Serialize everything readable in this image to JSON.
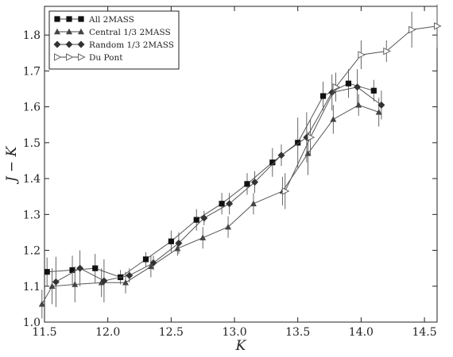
{
  "chart_data": {
    "type": "line",
    "title": "",
    "xlabel": "K",
    "ylabel": "J − K",
    "xlim": [
      11.5,
      14.6
    ],
    "ylim": [
      1.0,
      1.88
    ],
    "xticks": [
      "11.5",
      "12.0",
      "12.5",
      "13.0",
      "13.5",
      "14.0",
      "14.5"
    ],
    "yticks": [
      "1.0",
      "1.1",
      "1.2",
      "1.3",
      "1.4",
      "1.5",
      "1.6",
      "1.7",
      "1.8"
    ],
    "grid": false,
    "legend_position": "top-left",
    "series": [
      {
        "name": "All 2MASS",
        "marker": "square",
        "color": "#111111",
        "x": [
          11.52,
          11.72,
          11.9,
          12.1,
          12.3,
          12.5,
          12.7,
          12.9,
          13.1,
          13.3,
          13.5,
          13.7,
          13.9,
          14.1
        ],
        "y": [
          1.14,
          1.145,
          1.15,
          1.125,
          1.175,
          1.225,
          1.285,
          1.33,
          1.385,
          1.445,
          1.5,
          1.63,
          1.665,
          1.645
        ],
        "err": [
          0.04,
          0.04,
          0.04,
          0.02,
          0.02,
          0.03,
          0.03,
          0.03,
          0.03,
          0.04,
          0.07,
          0.04,
          0.04,
          0.03
        ]
      },
      {
        "name": "Central 1/3 2MASS",
        "marker": "triangle",
        "color": "#444444",
        "x": [
          11.48,
          11.56,
          11.74,
          11.95,
          12.14,
          12.34,
          12.55,
          12.75,
          12.95,
          13.15,
          13.38,
          13.58,
          13.78,
          13.98,
          14.14
        ],
        "y": [
          1.05,
          1.1,
          1.105,
          1.11,
          1.11,
          1.155,
          1.205,
          1.235,
          1.265,
          1.33,
          1.365,
          1.47,
          1.565,
          1.605,
          1.585
        ],
        "err": [
          0.04,
          0.05,
          0.05,
          0.04,
          0.03,
          0.03,
          0.02,
          0.03,
          0.03,
          0.03,
          0.04,
          0.06,
          0.04,
          0.03,
          0.04
        ]
      },
      {
        "name": "Random 1/3 2MASS",
        "marker": "diamond",
        "color": "#333333",
        "x": [
          11.59,
          11.78,
          11.97,
          12.17,
          12.36,
          12.56,
          12.76,
          12.96,
          13.16,
          13.37,
          13.57,
          13.77,
          13.97,
          14.16
        ],
        "y": [
          1.112,
          1.15,
          1.115,
          1.13,
          1.165,
          1.22,
          1.29,
          1.33,
          1.39,
          1.465,
          1.515,
          1.64,
          1.655,
          1.605
        ],
        "err": [
          0.07,
          0.05,
          0.06,
          0.02,
          0.02,
          0.03,
          0.02,
          0.03,
          0.03,
          0.03,
          0.07,
          0.05,
          0.05,
          0.04
        ]
      },
      {
        "name": "Du Pont",
        "marker": "triangle-right-open",
        "color": "#888888",
        "x": [
          13.4,
          13.6,
          13.8,
          14.0,
          14.2,
          14.4,
          14.6
        ],
        "y": [
          1.365,
          1.515,
          1.655,
          1.745,
          1.755,
          1.815,
          1.825
        ],
        "err": [
          0.05,
          0.05,
          0.04,
          0.04,
          0.03,
          0.05,
          0.06
        ]
      }
    ]
  }
}
